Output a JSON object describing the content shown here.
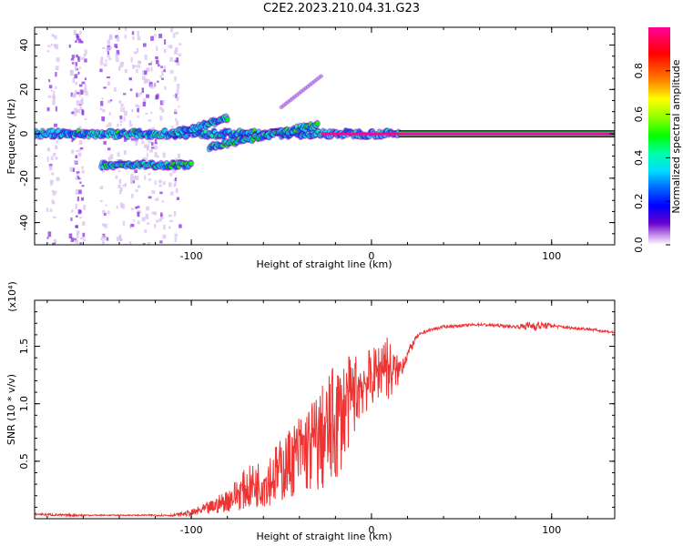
{
  "title": "C2E2.2023.210.04.31.G23",
  "colors": {
    "line": "#ee3333",
    "axis": "#000000",
    "colorbar": [
      "#ff0099",
      "#ff0000",
      "#ff8800",
      "#ffff00",
      "#88ff00",
      "#00ff00",
      "#00ffaa",
      "#00ddff",
      "#0066ff",
      "#0000ff",
      "#6600cc",
      "#cc99ee",
      "#ffffff"
    ]
  },
  "chart_data": [
    {
      "type": "heatmap",
      "name": "spectrogram",
      "xlabel": "Height of straight line (km)",
      "ylabel": "Frequency (Hz)",
      "xlim": [
        -187,
        135
      ],
      "ylim": [
        -50,
        48
      ],
      "x_ticks": [
        -100,
        0,
        100
      ],
      "x_tick_labels": [
        "-100",
        "0",
        "100"
      ],
      "y_ticks": [
        -40,
        -20,
        0,
        20,
        40
      ],
      "y_tick_labels": [
        "-40",
        "-20",
        "0",
        "20",
        "40"
      ],
      "colorbar": {
        "label": "Normalized spectral amplitude",
        "range": [
          0,
          1
        ],
        "ticks": [
          0.0,
          0.2,
          0.4,
          0.6,
          0.8
        ],
        "tick_labels": [
          "0.0",
          "0.2",
          "0.4",
          "0.6",
          "0.8"
        ]
      },
      "features": [
        {
          "name": "main-carrier-track",
          "x_range": [
            -187,
            135
          ],
          "frequency_hz": 0,
          "amplitude": 1.0
        },
        {
          "name": "lower-sideband-track",
          "x_range": [
            -150,
            -100
          ],
          "frequency_hz": -14,
          "amplitude": 0.6
        },
        {
          "name": "upper-doppler-branch",
          "x_range": [
            -110,
            -80
          ],
          "frequency_start_hz": 0,
          "frequency_end_hz": 7,
          "amplitude": 0.55
        },
        {
          "name": "lower-doppler-branch",
          "x_range": [
            -90,
            -30
          ],
          "frequency_start_hz": -6,
          "frequency_end_hz": 4,
          "amplitude": 0.6
        },
        {
          "name": "faint-rising-branch",
          "x_range": [
            -50,
            -28
          ],
          "frequency_start_hz": 12,
          "frequency_end_hz": 26,
          "amplitude": 0.15
        }
      ]
    },
    {
      "type": "line",
      "name": "snr",
      "xlabel": "Height of straight line (km)",
      "ylabel": "SNR (10 * v/v)",
      "scale_label": "(x10⁴)",
      "xlim": [
        -187,
        135
      ],
      "ylim": [
        0,
        1.9
      ],
      "x_ticks": [
        -100,
        0,
        100
      ],
      "x_tick_labels": [
        "-100",
        "0",
        "100"
      ],
      "y_ticks": [
        0.5,
        1.0,
        1.5
      ],
      "y_tick_labels": [
        "0.5",
        "1.0",
        "1.5"
      ],
      "x": [
        -187,
        -170,
        -150,
        -130,
        -110,
        -100,
        -90,
        -80,
        -70,
        -60,
        -50,
        -40,
        -30,
        -25,
        -20,
        -15,
        -10,
        -5,
        0,
        5,
        7,
        10,
        15,
        20,
        25,
        30,
        40,
        50,
        60,
        70,
        80,
        90,
        100,
        110,
        120,
        135
      ],
      "y": [
        0.04,
        0.03,
        0.03,
        0.03,
        0.03,
        0.05,
        0.09,
        0.16,
        0.26,
        0.32,
        0.42,
        0.57,
        0.66,
        0.73,
        0.83,
        0.95,
        1.08,
        1.18,
        1.22,
        1.3,
        1.4,
        1.28,
        1.28,
        1.43,
        1.58,
        1.63,
        1.67,
        1.68,
        1.69,
        1.68,
        1.67,
        1.68,
        1.68,
        1.66,
        1.65,
        1.62
      ],
      "spread": [
        0.01,
        0.01,
        0.005,
        0.005,
        0.01,
        0.03,
        0.06,
        0.1,
        0.18,
        0.22,
        0.28,
        0.35,
        0.45,
        0.5,
        0.55,
        0.45,
        0.35,
        0.3,
        0.25,
        0.25,
        0.3,
        0.28,
        0.12,
        0.05,
        0.02,
        0.015,
        0.012,
        0.012,
        0.012,
        0.012,
        0.012,
        0.05,
        0.015,
        0.012,
        0.012,
        0.012
      ]
    }
  ]
}
